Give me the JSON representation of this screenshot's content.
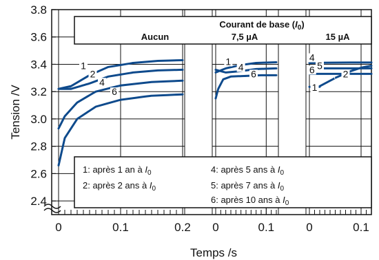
{
  "chart_data": {
    "type": "line",
    "title": "",
    "xlabel": "Temps /s",
    "ylabel": "Tension /V",
    "ylim": [
      2.3,
      3.8
    ],
    "y_ticks": [
      "3.8",
      "3.6",
      "3.4",
      "3.2",
      "3.0",
      "2.8",
      "2.6",
      "2.4"
    ],
    "x_ticks": [
      "0",
      "0.1",
      "0.2"
    ],
    "x_ticks_short": [
      "0",
      "0.1"
    ],
    "header_title_prefix": "Courant de base (",
    "header_title_var": "I",
    "header_title_sub": "0",
    "header_title_suffix": ")",
    "panels": [
      {
        "label": "Aucun",
        "xlim": [
          0,
          0.2
        ],
        "series": [
          {
            "id": "1",
            "x": [
              0,
              0.02,
              0.05,
              0.08,
              0.12,
              0.16,
              0.2
            ],
            "y": [
              3.22,
              3.24,
              3.32,
              3.38,
              3.41,
              3.425,
              3.43
            ]
          },
          {
            "id": "2",
            "x": [
              0,
              0.02,
              0.05,
              0.08,
              0.12,
              0.16,
              0.2
            ],
            "y": [
              3.22,
              3.22,
              3.26,
              3.31,
              3.34,
              3.355,
              3.36
            ]
          },
          {
            "id": "4",
            "x": [
              0,
              0.01,
              0.03,
              0.06,
              0.1,
              0.15,
              0.2
            ],
            "y": [
              2.93,
              3.02,
              3.12,
              3.2,
              3.245,
              3.27,
              3.28
            ]
          },
          {
            "id": "6",
            "x": [
              0,
              0.01,
              0.03,
              0.06,
              0.1,
              0.15,
              0.2
            ],
            "y": [
              2.66,
              2.86,
              3.0,
              3.09,
              3.14,
              3.17,
              3.18
            ]
          }
        ]
      },
      {
        "label": "7,5 µA",
        "xlim": [
          0,
          0.12
        ],
        "series": [
          {
            "id": "1",
            "x": [
              0,
              0.02,
              0.05,
              0.08,
              0.12
            ],
            "y": [
              3.34,
              3.37,
              3.395,
              3.41,
              3.415
            ]
          },
          {
            "id": "4",
            "x": [
              0,
              0.02,
              0.05,
              0.08,
              0.12
            ],
            "y": [
              3.36,
              3.34,
              3.35,
              3.365,
              3.37
            ]
          },
          {
            "id": "6",
            "x": [
              0,
              0.005,
              0.015,
              0.03,
              0.06,
              0.09,
              0.12
            ],
            "y": [
              3.15,
              3.22,
              3.29,
              3.31,
              3.315,
              3.32,
              3.32
            ]
          }
        ]
      },
      {
        "label": "15 µA",
        "xlim": [
          0,
          0.12
        ],
        "series": [
          {
            "id": "4",
            "x": [
              0,
              0.04,
              0.08,
              0.12
            ],
            "y": [
              3.41,
              3.412,
              3.413,
              3.413
            ]
          },
          {
            "id": "5",
            "x": [
              0,
              0.04,
              0.08,
              0.12
            ],
            "y": [
              3.37,
              3.37,
              3.37,
              3.37
            ]
          },
          {
            "id": "6",
            "x": [
              0,
              0.04,
              0.08,
              0.12
            ],
            "y": [
              3.33,
              3.33,
              3.33,
              3.33
            ]
          },
          {
            "id": "2",
            "x": [
              0.02,
              0.05,
              0.08,
              0.1,
              0.12
            ],
            "y": [
              3.24,
              3.3,
              3.35,
              3.375,
              3.39
            ]
          },
          {
            "id": "1",
            "x": [
              0,
              0.02
            ],
            "y": [
              3.235,
              3.235
            ]
          }
        ]
      }
    ],
    "legend": [
      {
        "id": "1",
        "prefix": "1: après 1 an à ",
        "var": "I",
        "sub": "0"
      },
      {
        "id": "2",
        "prefix": "2: après 2 ans à ",
        "var": "I",
        "sub": "0"
      },
      {
        "id": "4",
        "prefix": "4: après 5 ans à ",
        "var": "I",
        "sub": "0"
      },
      {
        "id": "5",
        "prefix": "5: après 7 ans à ",
        "var": "I",
        "sub": "0"
      },
      {
        "id": "6",
        "prefix": "6: après 10 ans à ",
        "var": "I",
        "sub": "0"
      }
    ],
    "line_color": "#0e4a8c",
    "frame_color": "#111111"
  }
}
